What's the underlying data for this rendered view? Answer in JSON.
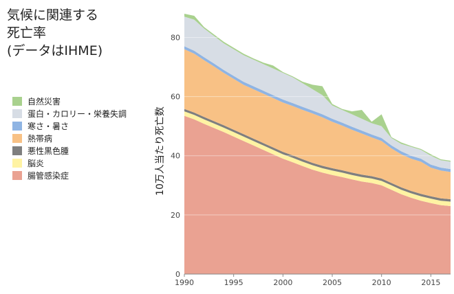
{
  "chart_data": {
    "type": "stacked-area",
    "title": [
      "気候に関連する",
      "死亡率",
      "(データはIHME)"
    ],
    "y_label": "10万人当たり死亡数",
    "x": [
      1990,
      1991,
      1992,
      1993,
      1994,
      1995,
      1996,
      1997,
      1998,
      1999,
      2000,
      2001,
      2002,
      2003,
      2004,
      2005,
      2006,
      2007,
      2008,
      2009,
      2010,
      2011,
      2012,
      2013,
      2014,
      2015,
      2016,
      2017
    ],
    "xlim": [
      1990,
      2017
    ],
    "xticks": [
      1990,
      1995,
      2000,
      2005,
      2010,
      2015
    ],
    "ylim": [
      0,
      88
    ],
    "yticks": [
      0,
      20,
      40,
      60,
      80
    ],
    "grid": true,
    "series": [
      {
        "name": "自然災害",
        "color": "#a9d18e",
        "values": [
          1,
          1.3,
          0.5,
          0.5,
          0.5,
          0.5,
          0.5,
          0.4,
          0.5,
          1,
          0.3,
          0.3,
          0.5,
          1.5,
          3,
          0.5,
          0.3,
          1,
          3,
          0.5,
          4,
          0.3,
          0.5,
          0.3,
          0.3,
          0.5,
          0.3,
          0.3
        ]
      },
      {
        "name": "蛋白・カロリー・栄養失調",
        "color": "#d7dde5",
        "values": [
          10,
          10.5,
          9.7,
          9.3,
          9,
          9,
          9,
          9,
          9,
          9,
          9,
          8.7,
          8,
          7.2,
          6.5,
          4.5,
          4.3,
          4.2,
          4,
          3.8,
          4,
          2.5,
          2.5,
          3,
          3,
          3,
          2.5,
          2.5
        ]
      },
      {
        "name": "寒さ・暑さ",
        "color": "#8fb4e3",
        "values": [
          1,
          1,
          1,
          1,
          1,
          1,
          1,
          1,
          1,
          1,
          1,
          1,
          1,
          1,
          1,
          1,
          1,
          1,
          1,
          1,
          1,
          1,
          1,
          1,
          1,
          1,
          1,
          1
        ]
      },
      {
        "name": "熱帯病",
        "color": "#f8c185",
        "values": [
          20.2,
          19.9,
          19.2,
          18.5,
          17.7,
          17.2,
          16.7,
          16.7,
          16.7,
          16.7,
          16.7,
          16.7,
          16.7,
          16.7,
          16.4,
          15.7,
          15.1,
          14.5,
          13.9,
          13.1,
          12.7,
          11.7,
          11.2,
          10.9,
          10.9,
          9.7,
          9.4,
          9.2
        ]
      },
      {
        "name": "悪性黒色腫",
        "color": "#7f7f7f",
        "values": [
          0.8,
          0.8,
          0.8,
          0.8,
          0.8,
          0.8,
          0.8,
          0.8,
          0.8,
          0.8,
          0.8,
          0.8,
          0.8,
          0.8,
          0.8,
          0.8,
          0.8,
          0.8,
          0.8,
          0.8,
          0.8,
          0.8,
          0.8,
          0.8,
          0.8,
          0.8,
          0.8,
          0.8
        ]
      },
      {
        "name": "脳炎",
        "color": "#fff3a3",
        "values": [
          1.5,
          1.5,
          1.5,
          1.5,
          1.5,
          1.5,
          1.5,
          1.5,
          1.5,
          1.5,
          1.5,
          1.5,
          1.5,
          1.5,
          1.5,
          1.5,
          1.5,
          1.5,
          1.5,
          1.5,
          1.5,
          1.5,
          1.5,
          1.5,
          1.5,
          1.5,
          1.5,
          1.5
        ]
      },
      {
        "name": "腸管感染症",
        "color": "#eaa292",
        "values": [
          53.5,
          52.3,
          50.8,
          49.4,
          48,
          46.5,
          45,
          43.5,
          42,
          40.5,
          39,
          37.8,
          36.5,
          35.3,
          34.3,
          33.5,
          32.8,
          32,
          31.3,
          30.8,
          30,
          28.5,
          27,
          25.8,
          24.8,
          24,
          23.3,
          23
        ]
      }
    ]
  }
}
